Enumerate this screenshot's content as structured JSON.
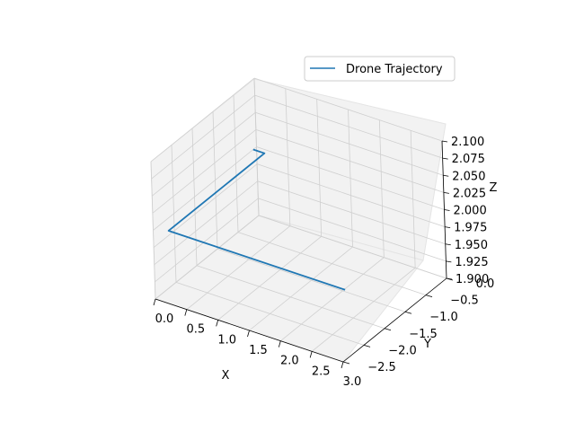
{
  "chart_data": {
    "type": "line",
    "projection": "3d",
    "title": "",
    "xlabel": "X",
    "ylabel": "Y",
    "zlabel": "Z",
    "xlim": [
      0,
      3
    ],
    "ylim": [
      -2.5,
      0
    ],
    "zlim": [
      1.9,
      2.1
    ],
    "x_ticks": [
      "0.0",
      "0.5",
      "1.0",
      "1.5",
      "2.0",
      "2.5",
      "3.0"
    ],
    "y_ticks": [
      "0.0",
      "−0.5",
      "−1.0",
      "−1.5",
      "−2.0",
      "−2.5"
    ],
    "z_ticks": [
      "1.900",
      "1.925",
      "1.950",
      "1.975",
      "2.000",
      "2.025",
      "2.050",
      "2.075",
      "2.100"
    ],
    "legend": {
      "placement": "top-right",
      "entries": [
        "Drone Trajectory"
      ]
    },
    "grid": true,
    "series": [
      {
        "name": "Drone Trajectory",
        "color": "#1f77b4",
        "points": [
          {
            "x": 0,
            "y": -0.08,
            "z": 2.0
          },
          {
            "x": 0.18,
            "y": -0.08,
            "z": 2.0
          },
          {
            "x": 0.18,
            "y": -2.4,
            "z": 2.0
          },
          {
            "x": 3.0,
            "y": -2.4,
            "z": 2.0
          }
        ]
      }
    ]
  }
}
